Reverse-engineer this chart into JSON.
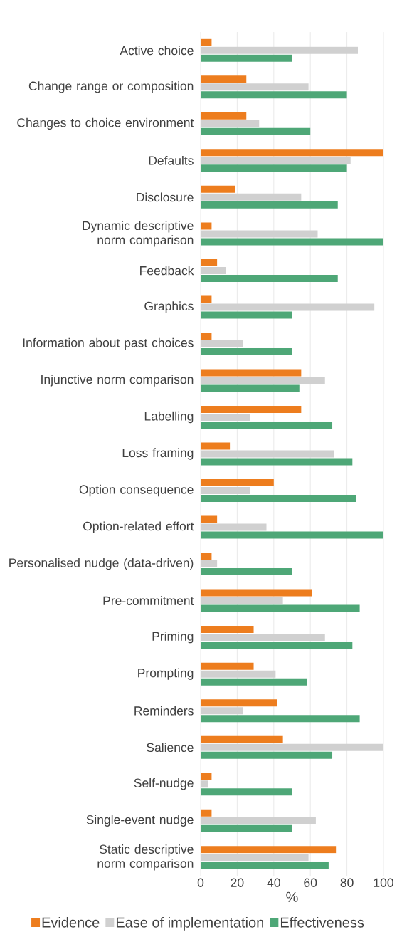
{
  "chart_data": {
    "type": "bar",
    "orientation": "horizontal",
    "xlabel": "%",
    "xlim": [
      0,
      100
    ],
    "xticks": [
      0,
      20,
      40,
      60,
      80,
      100
    ],
    "grid": "x",
    "legend": "bottom",
    "categories": [
      "Active choice",
      "Change range or composition",
      "Changes to choice environment",
      "Defaults",
      "Disclosure",
      "Dynamic descriptive norm comparison",
      "Feedback",
      "Graphics",
      "Information about past choices",
      "Injunctive norm comparison",
      "Labelling",
      "Loss framing",
      "Option consequence",
      "Option-related effort",
      "Personalised nudge (data-driven)",
      "Pre-commitment",
      "Priming",
      "Prompting",
      "Reminders",
      "Salience",
      "Self-nudge",
      "Single-event nudge",
      "Static descriptive norm comparison"
    ],
    "series": [
      {
        "name": "Evidence",
        "color": "#ed7d1e",
        "values": [
          6,
          25,
          25,
          100,
          19,
          6,
          9,
          6,
          6,
          55,
          55,
          16,
          40,
          9,
          6,
          61,
          29,
          29,
          42,
          45,
          6,
          6,
          74
        ]
      },
      {
        "name": "Ease of implementation",
        "color": "#d0d0d0",
        "values": [
          86,
          59,
          32,
          82,
          55,
          64,
          14,
          95,
          23,
          68,
          27,
          73,
          27,
          36,
          9,
          45,
          68,
          41,
          23,
          100,
          4,
          63,
          59
        ]
      },
      {
        "name": "Effectiveness",
        "color": "#4ea777",
        "values": [
          50,
          80,
          60,
          80,
          75,
          100,
          75,
          50,
          50,
          54,
          72,
          83,
          85,
          100,
          50,
          87,
          83,
          58,
          87,
          72,
          50,
          50,
          70
        ]
      }
    ]
  }
}
